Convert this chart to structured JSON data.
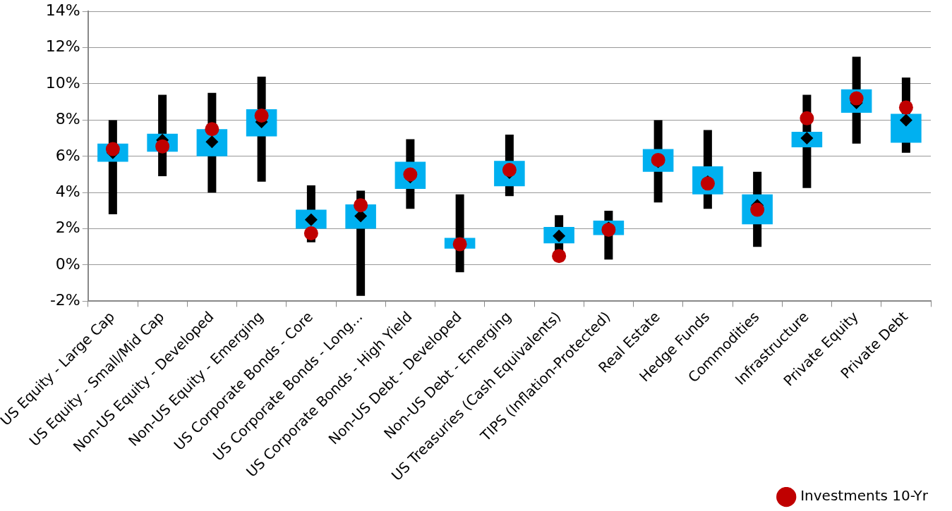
{
  "chart_data": {
    "type": "box",
    "categories": [
      "US Equity - Large Cap",
      "US Equity - Small/Mid Cap",
      "Non-US Equity - Developed",
      "Non-US Equity - Emerging",
      "US Corporate Bonds - Core",
      "US Corporate Bonds - Long...",
      "US Corporate Bonds - High Yield",
      "Non-US Debt - Developed",
      "Non-US Debt - Emerging",
      "US Treasuries (Cash Equivalents)",
      "TIPS (Inflation-Protected)",
      "Real Estate",
      "Hedge Funds",
      "Commodities",
      "Infrastructure",
      "Private Equity",
      "Private Debt"
    ],
    "series": [
      {
        "color": "#00b0f0",
        "boxes": [
          {
            "low": 2.8,
            "q1": 5.7,
            "median": 6.2,
            "q3": 6.7,
            "high": 8.0
          },
          {
            "low": 4.9,
            "q1": 6.25,
            "median": 6.9,
            "q3": 7.25,
            "high": 9.4
          },
          {
            "low": 4.0,
            "q1": 6.0,
            "median": 6.8,
            "q3": 7.5,
            "high": 9.5
          },
          {
            "low": 4.6,
            "q1": 7.1,
            "median": 7.9,
            "q3": 8.6,
            "high": 10.4
          },
          {
            "low": 1.25,
            "q1": 2.0,
            "median": 2.5,
            "q3": 3.05,
            "high": 4.4
          },
          {
            "low": -1.7,
            "q1": 2.0,
            "median": 2.7,
            "q3": 3.35,
            "high": 4.1
          },
          {
            "low": 3.1,
            "q1": 4.2,
            "median": 4.85,
            "q3": 5.7,
            "high": 6.95
          },
          {
            "low": -0.4,
            "q1": 0.9,
            "median": 1.2,
            "q3": 1.5,
            "high": 3.9
          },
          {
            "low": 3.8,
            "q1": 4.35,
            "median": 5.1,
            "q3": 5.75,
            "high": 7.2
          },
          {
            "low": 0.7,
            "q1": 1.2,
            "median": 1.6,
            "q3": 2.1,
            "high": 2.75
          },
          {
            "low": 0.3,
            "q1": 1.65,
            "median": 2.05,
            "q3": 2.45,
            "high": 3.0
          },
          {
            "low": 3.45,
            "q1": 5.15,
            "median": 5.7,
            "q3": 6.4,
            "high": 8.0
          },
          {
            "low": 3.1,
            "q1": 3.9,
            "median": 4.6,
            "q3": 5.45,
            "high": 7.45
          },
          {
            "low": 1.0,
            "q1": 2.25,
            "median": 3.3,
            "q3": 3.9,
            "high": 5.15
          },
          {
            "low": 4.25,
            "q1": 6.5,
            "median": 7.0,
            "q3": 7.35,
            "high": 9.4
          },
          {
            "low": 6.7,
            "q1": 8.4,
            "median": 8.95,
            "q3": 9.7,
            "high": 11.5
          },
          {
            "low": 6.2,
            "q1": 6.75,
            "median": 8.0,
            "q3": 8.35,
            "high": 10.35
          }
        ]
      },
      {
        "type": "scatter",
        "name": "Investments 10-Yr",
        "color": "#c00000",
        "marker": "circle",
        "x": [
          "US Equity - Large Cap",
          "US Equity - Small/Mid Cap",
          "Non-US Equity - Developed",
          "Non-US Equity - Emerging",
          "US Corporate Bonds - Core",
          "US Corporate Bonds - Long...",
          "US Corporate Bonds - High Yield",
          "Non-US Debt - Developed",
          "Non-US Debt - Emerging",
          "US Treasuries (Cash Equivalents)",
          "TIPS (Inflation-Protected)",
          "Real Estate",
          "Hedge Funds",
          "Commodities",
          "Infrastructure",
          "Private Equity",
          "Private Debt"
        ],
        "values": [
          6.4,
          6.55,
          7.5,
          8.25,
          1.75,
          3.3,
          5.0,
          1.15,
          5.25,
          0.5,
          1.95,
          5.8,
          4.5,
          3.05,
          8.1,
          9.2,
          8.7
        ]
      }
    ],
    "ylim": [
      -2,
      14
    ],
    "yticks": [
      {
        "value": -2,
        "label": "-2%"
      },
      {
        "value": 0,
        "label": "0%"
      },
      {
        "value": 2,
        "label": "2%"
      },
      {
        "value": 4,
        "label": "4%"
      },
      {
        "value": 6,
        "label": "6%"
      },
      {
        "value": 8,
        "label": "8%"
      },
      {
        "value": 10,
        "label": "10%"
      },
      {
        "value": 12,
        "label": "12%"
      },
      {
        "value": 14,
        "label": "14%"
      }
    ],
    "grid": "y",
    "legend": "bottom"
  }
}
